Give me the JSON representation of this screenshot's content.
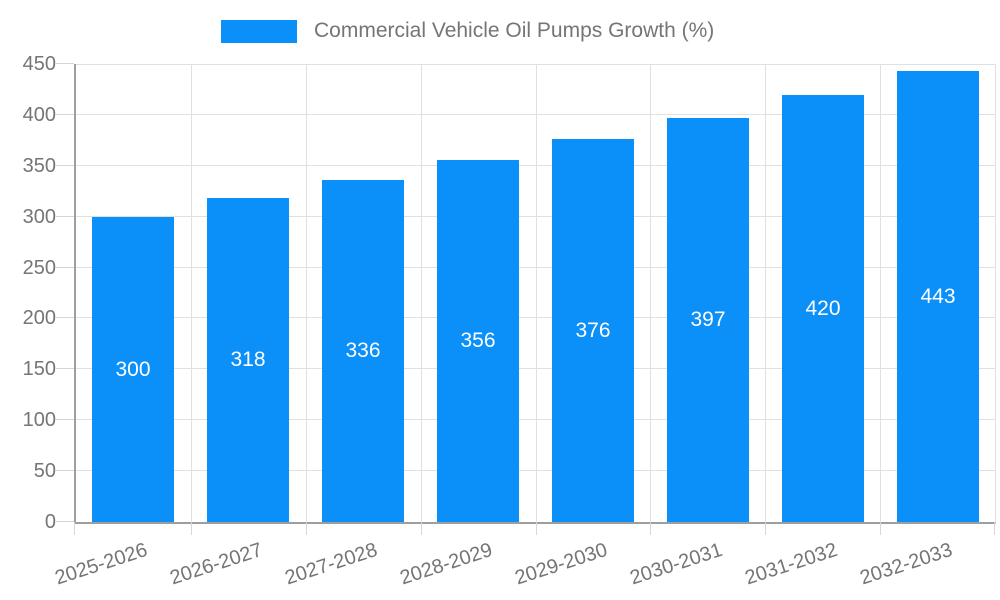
{
  "legend": {
    "label": "Commercial Vehicle Oil Pumps Growth (%)"
  },
  "chart_data": {
    "type": "bar",
    "title": "Commercial Vehicle Oil Pumps Growth (%)",
    "categories": [
      "2025-2026",
      "2026-2027",
      "2027-2028",
      "2028-2029",
      "2029-2030",
      "2030-2031",
      "2031-2032",
      "2032-2033"
    ],
    "series": [
      {
        "name": "Commercial Vehicle Oil Pumps Growth (%)",
        "values": [
          300,
          318,
          336,
          356,
          376,
          397,
          420,
          443
        ]
      }
    ],
    "value_labels": [
      "300",
      "318",
      "336",
      "356",
      "376",
      "397",
      "420",
      "443"
    ],
    "xlabel": "",
    "ylabel": "",
    "ylim": [
      0,
      450
    ],
    "ytick_interval": 50,
    "ytick_labels": [
      "0",
      "50",
      "100",
      "150",
      "200",
      "250",
      "300",
      "350",
      "400",
      "450"
    ],
    "grid": "on",
    "legend_position": "top",
    "x_label_rotation_deg": -18,
    "colors": {
      "bar": "#0b8ff8",
      "axis_label": "#757575",
      "gridline": "#e0e0e0",
      "axis_line": "#9e9e9e",
      "tick": "#d6d6d6",
      "value_label": "#ffffff",
      "background": "#ffffff"
    }
  }
}
